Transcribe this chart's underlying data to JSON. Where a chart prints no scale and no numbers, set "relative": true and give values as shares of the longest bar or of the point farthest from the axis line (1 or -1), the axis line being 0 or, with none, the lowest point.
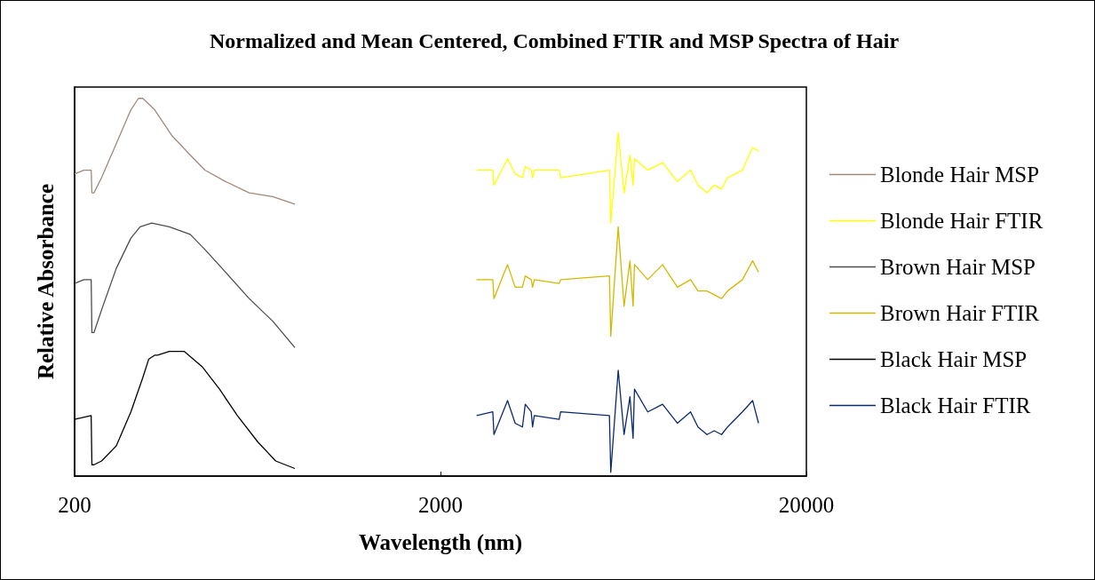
{
  "chart_data": {
    "type": "line",
    "title": "Normalized and Mean Centered, Combined FTIR and MSP Spectra of Hair",
    "xlabel": "Wavelength (nm)",
    "ylabel": "Relative Absorbance",
    "relative": true,
    "log": "x",
    "xlim": [
      200,
      20000
    ],
    "xticks": [
      200,
      2000,
      20000
    ],
    "legend": "right",
    "marker": "none",
    "line_style": "solid",
    "series": [
      {
        "name": "Blonde Hair MSP",
        "color": "#9e8a7e",
        "x": [
          200,
          212,
          222,
          223,
          226,
          237,
          260,
          285,
          299,
          307,
          331,
          370,
          414,
          454,
          517,
          600,
          696,
          800
        ],
        "values": [
          0.8,
          0.81,
          0.81,
          0.75,
          0.75,
          0.79,
          0.88,
          0.97,
          1.0,
          1.0,
          0.97,
          0.9,
          0.85,
          0.81,
          0.78,
          0.75,
          0.74,
          0.72
        ]
      },
      {
        "name": "Blonde Hair FTIR",
        "color": "#ffff00",
        "x": [
          2510,
          2780,
          2800,
          3050,
          3200,
          3350,
          3410,
          3540,
          3570,
          3610,
          4220,
          4260,
          5790,
          5840,
          6120,
          6350,
          6590,
          6720,
          6780,
          7370,
          8090,
          8880,
          9650,
          10110,
          10700,
          11200,
          11730,
          12180,
          13370,
          14260,
          14800
        ],
        "values": [
          0.81,
          0.81,
          0.77,
          0.84,
          0.8,
          0.79,
          0.82,
          0.81,
          0.79,
          0.81,
          0.81,
          0.79,
          0.81,
          0.67,
          0.91,
          0.75,
          0.85,
          0.77,
          0.84,
          0.81,
          0.83,
          0.78,
          0.81,
          0.77,
          0.75,
          0.77,
          0.76,
          0.79,
          0.81,
          0.87,
          0.86
        ]
      },
      {
        "name": "Brown Hair MSP",
        "color": "#4d4d4d",
        "x": [
          200,
          212,
          222,
          223,
          226,
          237,
          260,
          285,
          302,
          325,
          363,
          414,
          454,
          517,
          600,
          696,
          800
        ],
        "values": [
          0.51,
          0.52,
          0.52,
          0.38,
          0.38,
          0.44,
          0.55,
          0.63,
          0.66,
          0.67,
          0.66,
          0.64,
          0.6,
          0.54,
          0.47,
          0.41,
          0.34
        ]
      },
      {
        "name": "Brown Hair FTIR",
        "color": "#d4b800",
        "x": [
          2510,
          2780,
          2800,
          3050,
          3200,
          3350,
          3410,
          3540,
          3570,
          3610,
          4220,
          4260,
          5790,
          5840,
          6120,
          6350,
          6590,
          6720,
          6780,
          7370,
          8090,
          8880,
          9650,
          10110,
          10700,
          11200,
          11730,
          12180,
          13370,
          14260,
          14800
        ],
        "values": [
          0.52,
          0.52,
          0.47,
          0.56,
          0.5,
          0.5,
          0.53,
          0.52,
          0.5,
          0.52,
          0.51,
          0.52,
          0.53,
          0.37,
          0.66,
          0.45,
          0.57,
          0.45,
          0.56,
          0.52,
          0.56,
          0.5,
          0.52,
          0.49,
          0.49,
          0.48,
          0.47,
          0.49,
          0.52,
          0.57,
          0.54
        ]
      },
      {
        "name": "Black Hair MSP",
        "color": "#000000",
        "x": [
          200,
          222,
          223,
          226,
          237,
          260,
          285,
          307,
          319,
          331,
          337,
          363,
          399,
          446,
          498,
          557,
          634,
          709,
          800
        ],
        "values": [
          0.15,
          0.16,
          0.03,
          0.03,
          0.04,
          0.08,
          0.17,
          0.26,
          0.31,
          0.32,
          0.32,
          0.33,
          0.33,
          0.29,
          0.23,
          0.16,
          0.09,
          0.04,
          0.02
        ]
      },
      {
        "name": "Black Hair FTIR",
        "color": "#0a2a6e",
        "x": [
          2510,
          2780,
          2800,
          3050,
          3200,
          3350,
          3410,
          3540,
          3570,
          3610,
          4220,
          4260,
          5790,
          5840,
          6120,
          6350,
          6590,
          6720,
          6780,
          7370,
          8090,
          8880,
          9650,
          10110,
          10700,
          11200,
          11730,
          12180,
          13370,
          14260,
          14800
        ],
        "values": [
          0.16,
          0.17,
          0.11,
          0.2,
          0.14,
          0.13,
          0.19,
          0.17,
          0.13,
          0.16,
          0.15,
          0.17,
          0.16,
          0.01,
          0.28,
          0.11,
          0.21,
          0.1,
          0.23,
          0.17,
          0.19,
          0.14,
          0.17,
          0.13,
          0.11,
          0.12,
          0.11,
          0.13,
          0.17,
          0.2,
          0.14
        ]
      }
    ]
  }
}
